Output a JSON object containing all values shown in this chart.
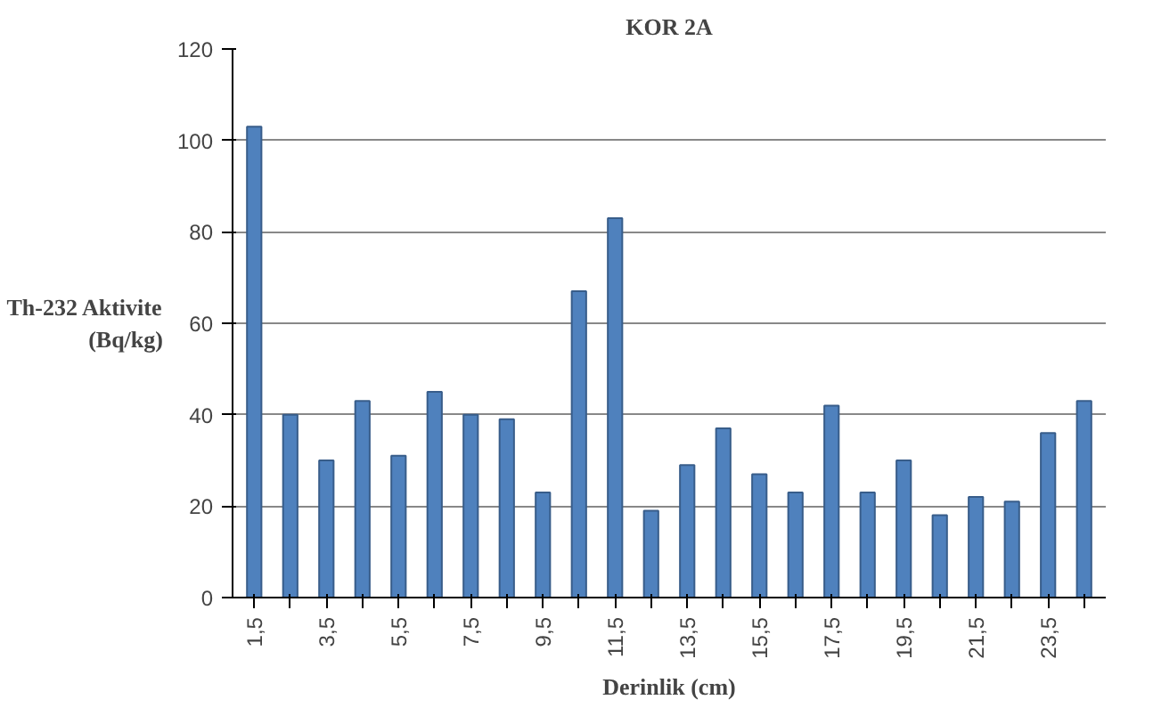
{
  "chart_data": {
    "type": "bar",
    "title": "KOR 2A",
    "xlabel": "Derinlik (cm)",
    "ylabel": "Th-232 Aktivite\n(Bq/kg)",
    "categories": [
      "1,5",
      null,
      "3,5",
      null,
      "5,5",
      null,
      "7,5",
      null,
      "9,5",
      null,
      "11,5",
      null,
      "13,5",
      null,
      "15,5",
      null,
      "17,5",
      null,
      "19,5",
      null,
      "21,5",
      null,
      "23,5",
      null
    ],
    "values": [
      103,
      40,
      30,
      43,
      31,
      45,
      40,
      39,
      23,
      67,
      83,
      19,
      29,
      37,
      27,
      23,
      42,
      23,
      30,
      18,
      22,
      21,
      36,
      43
    ],
    "color": "#4f81bd",
    "ylim": [
      0,
      120
    ],
    "yticks": [
      0,
      20,
      40,
      60,
      80,
      100,
      120
    ],
    "grid": "y"
  }
}
